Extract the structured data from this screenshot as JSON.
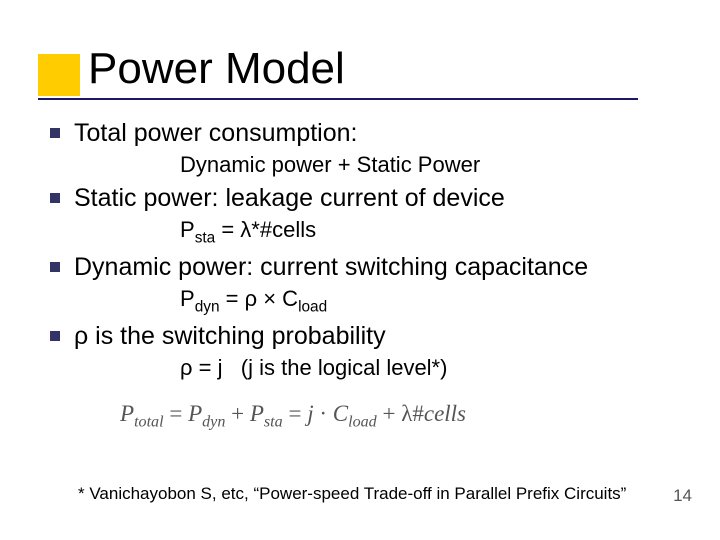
{
  "title": "Power Model",
  "bullets": [
    {
      "main": "Total power consumption:",
      "sub": "Dynamic power + Static Power"
    },
    {
      "main": "Static power: leakage current of device",
      "sub_html": "P<sub>sta</sub> = λ*#cells"
    },
    {
      "main": "Dynamic power: current switching capacitance",
      "sub_html": "P<sub>dyn</sub> = ρ × C<sub>load</sub>"
    },
    {
      "main_html": "ρ is the switching probability",
      "sub_html": "ρ = j&nbsp;&nbsp;&nbsp;(j is the logical level*)"
    }
  ],
  "formula": {
    "text_html": "<span class='ital'>P<sub>total</sub></span> = <span class='ital'>P<sub>dyn</sub></span> + <span class='ital'>P<sub>sta</sub></span> = <span class='ital'>j</span> · <span class='ital'>C<sub>load</sub></span> + λ#<span class='ital'>cells</span>",
    "fontsize": 23,
    "color": "#555555"
  },
  "footnote": "* Vanichayobon S, etc, “Power-speed Trade-off in Parallel Prefix Circuits”",
  "page_number": "14",
  "colors": {
    "accent": "#ffcc00",
    "rule": "#1a1a66",
    "bullet": "#333366",
    "background": "#ffffff"
  }
}
